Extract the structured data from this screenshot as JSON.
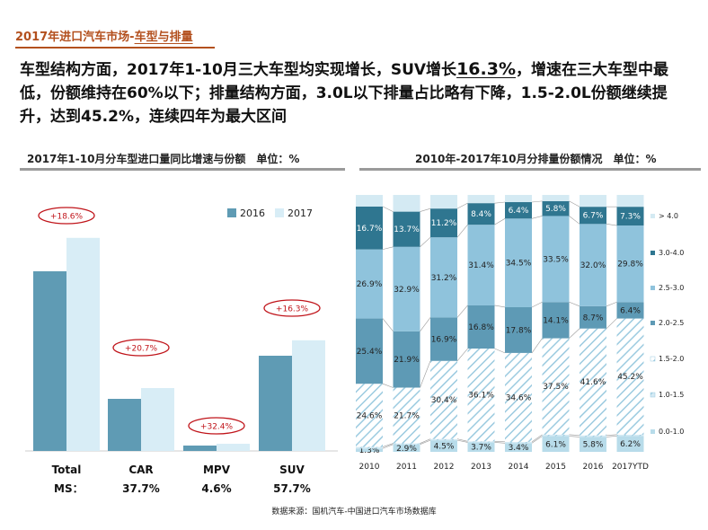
{
  "header": {
    "prefix": "2017年进口汽车市场-",
    "highlight": "车型与排量"
  },
  "summary": {
    "part1": "车型结构方面，2017年1-10月三大车型均实现增长，SUV增长",
    "highlight": "16.3%",
    "part2": "，增速在三大车型中最低，份额维持在60%以下；排量结构方面，3.0L以下排量占比略有下降，1.5-2.0L份额继续提升，达到45.2%，连续四年为最大区间"
  },
  "left_panel": {
    "title": "2017年1-10月分车型进口量同比增速与份额　单位：%"
  },
  "right_panel": {
    "title": "2010年-2017年10月分排量份额情况　单位：%"
  },
  "source": "数据来源：国机汽车-中国进口汽车市场数据库",
  "colors": {
    "series_2016": "#5f9bb4",
    "series_2017": "#d8edf6",
    "oval": "#c0141a",
    "accent": "#b3501e"
  },
  "chart_data": [
    {
      "type": "bar",
      "categories": [
        "Total",
        "CAR",
        "MPV",
        "SUV"
      ],
      "series": [
        {
          "name": "2016",
          "values": [
            100,
            29,
            3,
            53
          ]
        },
        {
          "name": "2017",
          "values": [
            118.6,
            35,
            4,
            61.6
          ]
        }
      ],
      "growth_labels": [
        "+18.6%",
        "+20.7%",
        "+32.4%",
        "+16.3%"
      ],
      "ms_label": "MS：",
      "ms_values": [
        "",
        "37.7%",
        "4.6%",
        "57.7%"
      ],
      "legend_position": "top-right",
      "grid": false
    },
    {
      "type": "bar",
      "stacked": true,
      "categories": [
        "2010",
        "2011",
        "2012",
        "2013",
        "2014",
        "2015",
        "2016",
        "2017YTD"
      ],
      "series": [
        {
          "name": "0.0-1.0",
          "color": "#b8dcea",
          "hatched": false,
          "values": [
            1.3,
            2.9,
            4.5,
            3.7,
            3.4,
            6.1,
            5.8,
            6.2
          ],
          "labels": [
            "1.3%",
            "2.9%",
            "4.5%",
            "3.7%",
            "3.4%",
            "6.1%",
            "5.8%",
            "6.2%"
          ]
        },
        {
          "name": "1.0-1.5",
          "color": "#cfe6f0",
          "hatched": true,
          "values": [
            0.6,
            0.4,
            0.5,
            0.4,
            0.5,
            0.6,
            0.6,
            0.5
          ],
          "labels": [
            "",
            "",
            "",
            "",
            "",
            "",
            "",
            ""
          ]
        },
        {
          "name": "1.5-2.0",
          "color": "#ffffff",
          "hatched": true,
          "values": [
            24.6,
            21.7,
            30.4,
            36.1,
            34.6,
            37.5,
            41.6,
            45.2
          ],
          "labels": [
            "24.6%",
            "21.7%",
            "30.4%",
            "36.1%",
            "34.6%",
            "37.5%",
            "41.6%",
            "45.2%"
          ]
        },
        {
          "name": "2.0-2.5",
          "color": "#5e9ab5",
          "hatched": false,
          "values": [
            25.4,
            21.9,
            16.9,
            16.8,
            17.8,
            14.1,
            8.7,
            6.4
          ],
          "labels": [
            "25.4%",
            "21.9%",
            "16.9%",
            "16.8%",
            "17.8%",
            "14.1%",
            "8.7%",
            "6.4%"
          ]
        },
        {
          "name": "2.5-3.0",
          "color": "#8fc3dc",
          "hatched": false,
          "values": [
            26.9,
            32.9,
            31.2,
            31.4,
            34.5,
            33.5,
            32.0,
            29.8
          ],
          "labels": [
            "26.9%",
            "32.9%",
            "31.2%",
            "31.4%",
            "34.5%",
            "33.5%",
            "32.0%",
            "29.8%"
          ]
        },
        {
          "name": "3.0-4.0",
          "color": "#2f7690",
          "hatched": false,
          "values": [
            16.7,
            13.7,
            11.2,
            8.4,
            6.4,
            5.8,
            6.7,
            7.3
          ],
          "labels": [
            "16.7%",
            "13.7%",
            "11.2%",
            "8.4%",
            "6.4%",
            "5.8%",
            "6.7%",
            "7.3%"
          ]
        },
        {
          "name": "> 4.0",
          "color": "#d4eaf3",
          "hatched": false,
          "values": [
            4.5,
            6.5,
            5.3,
            3.2,
            2.8,
            2.4,
            4.6,
            4.6
          ],
          "labels": [
            "",
            "",
            "",
            "",
            "",
            "",
            "",
            ""
          ]
        }
      ],
      "ylim": [
        0,
        100
      ],
      "legend_position": "right",
      "grid": false
    }
  ]
}
